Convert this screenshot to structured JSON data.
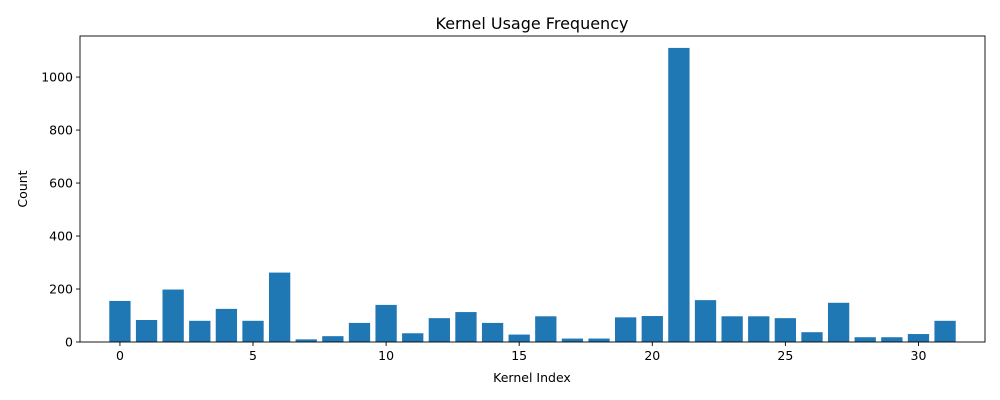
{
  "chart_data": {
    "type": "bar",
    "title": "Kernel Usage Frequency",
    "xlabel": "Kernel Index",
    "ylabel": "Count",
    "x": [
      0,
      1,
      2,
      3,
      4,
      5,
      6,
      7,
      8,
      9,
      10,
      11,
      12,
      13,
      14,
      15,
      16,
      17,
      18,
      19,
      20,
      21,
      22,
      23,
      24,
      25,
      26,
      27,
      28,
      29,
      30,
      31
    ],
    "values": [
      155,
      83,
      198,
      80,
      125,
      80,
      262,
      10,
      22,
      72,
      140,
      33,
      90,
      113,
      72,
      28,
      97,
      13,
      13,
      93,
      98,
      1110,
      158,
      97,
      97,
      90,
      37,
      148,
      18,
      18,
      30,
      80
    ],
    "xlim": [
      -1.5,
      32.5
    ],
    "ylim": [
      0,
      1155
    ],
    "xticks": [
      0,
      5,
      10,
      15,
      20,
      25,
      30
    ],
    "yticks": [
      0,
      200,
      400,
      600,
      800,
      1000
    ],
    "bar_color": "#1f77b4",
    "grid": false,
    "legend": false
  }
}
